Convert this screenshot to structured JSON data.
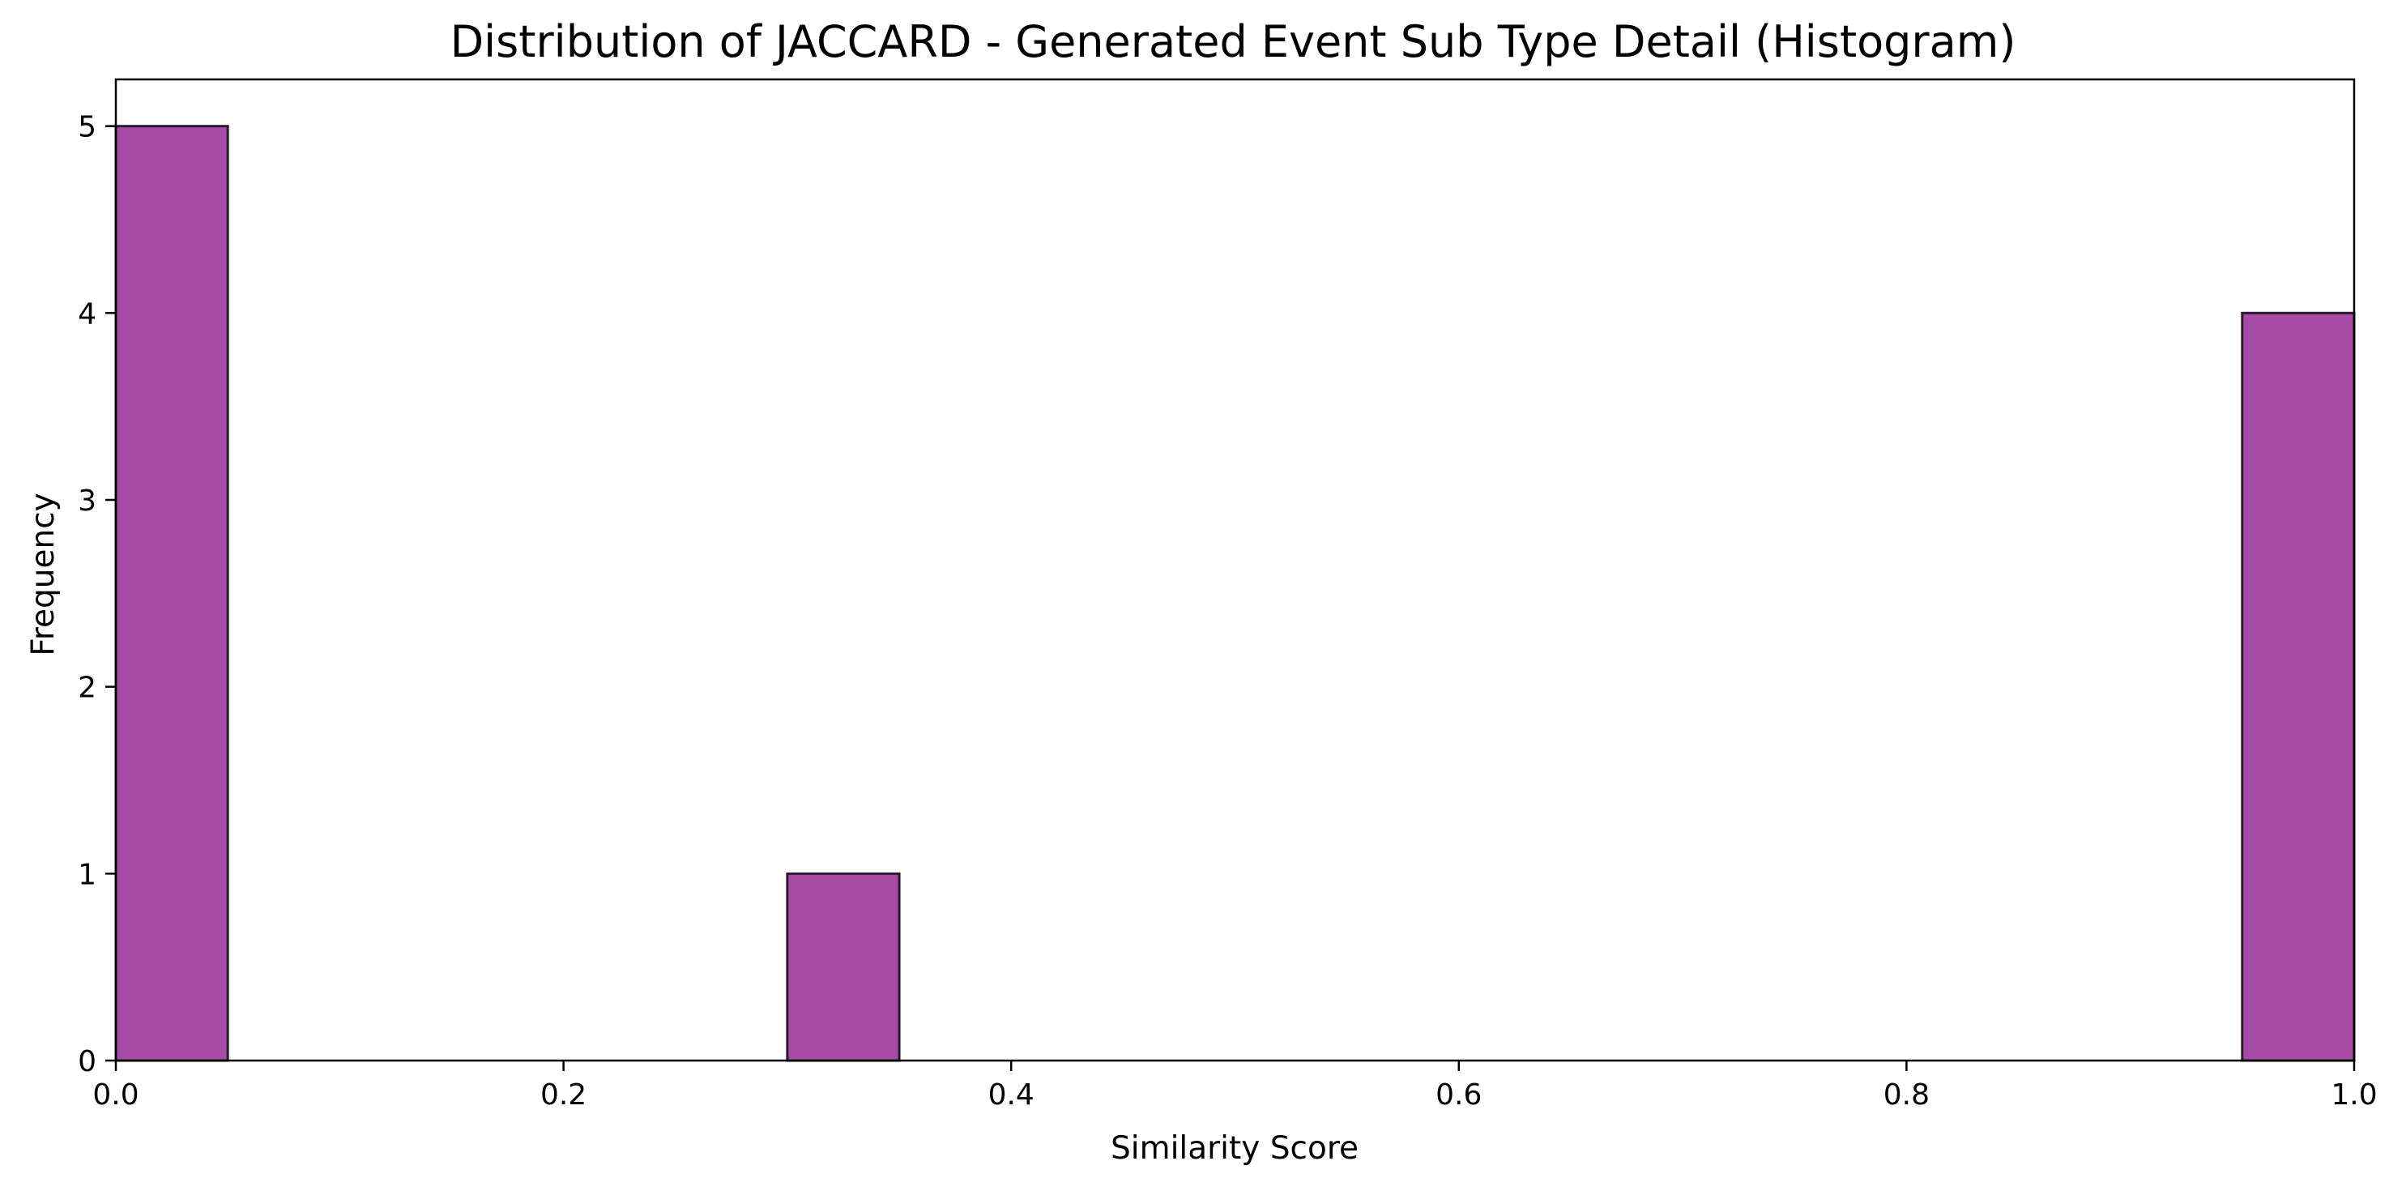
{
  "chart_data": {
    "type": "bar",
    "title": "Distribution of JACCARD - Generated Event Sub Type Detail (Histogram)",
    "xlabel": "Similarity Score",
    "ylabel": "Frequency",
    "xlim": [
      0.0,
      1.0
    ],
    "ylim": [
      0,
      5.25
    ],
    "xticks": [
      "0.0",
      "0.2",
      "0.4",
      "0.6",
      "0.8",
      "1.0"
    ],
    "yticks": [
      "0",
      "1",
      "2",
      "3",
      "4",
      "5"
    ],
    "bin_width": 0.05,
    "bins": [
      {
        "x0": 0.0,
        "x1": 0.05,
        "count": 5
      },
      {
        "x0": 0.3,
        "x1": 0.35,
        "count": 1
      },
      {
        "x0": 0.95,
        "x1": 1.0,
        "count": 4
      }
    ],
    "bar_color": "#a64ca6",
    "edge_color": "#2b1a2b",
    "grid": false,
    "legend": "none"
  }
}
